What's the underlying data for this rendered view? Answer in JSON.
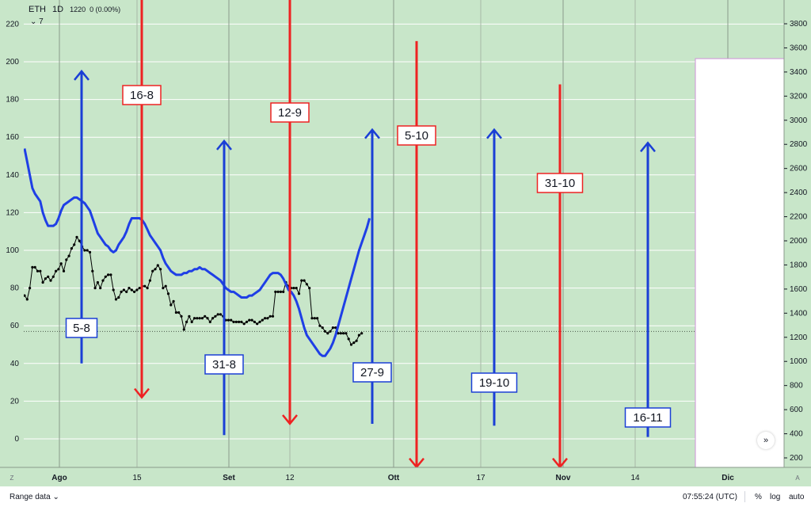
{
  "header": {
    "symbol": "ETH",
    "timeframe": "1D",
    "value": "1220",
    "change": "0 (0.00%)",
    "collapse_count": "7"
  },
  "footer": {
    "range_label": "Range data",
    "time": "07:55:24 (UTC)",
    "percent_label": "%",
    "log_label": "log",
    "auto_label": "auto",
    "corner_left": "Z",
    "corner_right": "A"
  },
  "colors": {
    "background": "#c8e6c9",
    "grid": "#ffffff",
    "sessions": "#9e9e9e",
    "black_series": "#000000",
    "blue_series": "#1f3fe6",
    "blue_arrows": "#1a3fd6",
    "red_arrows": "#ee2222"
  },
  "chart_data": {
    "type": "line",
    "x_axis_ticks": [
      "Ago",
      "15",
      "Set",
      "12",
      "Ott",
      "17",
      "Nov",
      "14",
      "Dic"
    ],
    "left_axis": {
      "ticks": [
        0,
        20,
        40,
        60,
        80,
        100,
        120,
        140,
        160,
        180,
        200,
        220
      ],
      "range": [
        -12,
        233
      ]
    },
    "right_axis": {
      "ticks": [
        200,
        400,
        600,
        800,
        1000,
        1200,
        1400,
        1600,
        1800,
        2000,
        2200,
        2400,
        2600,
        2800,
        3000,
        3200,
        3400,
        3600,
        3800
      ],
      "range": [
        150,
        3880
      ]
    },
    "reference_line_left_value": 57,
    "series": [
      {
        "color": "#000000",
        "axis": "left",
        "values": [
          76,
          74,
          80,
          91,
          91,
          89,
          89,
          83,
          85,
          86,
          84,
          86,
          89,
          90,
          93,
          89,
          95,
          97,
          101,
          103,
          107,
          105,
          102,
          100,
          100,
          99,
          89,
          80,
          83,
          80,
          84,
          86,
          87,
          87,
          79,
          74,
          75,
          78,
          79,
          78,
          80,
          79,
          78,
          79,
          80,
          81,
          81,
          80,
          84,
          89,
          90,
          92,
          90,
          80,
          81,
          77,
          71,
          73,
          67,
          67,
          65,
          58,
          62,
          65,
          62,
          64,
          64,
          64,
          64,
          65,
          64,
          62,
          64,
          65,
          66,
          66,
          65,
          63,
          63,
          63,
          62,
          62,
          62,
          62,
          61,
          62,
          63,
          63,
          62,
          61,
          62,
          63,
          64,
          64,
          65,
          65,
          78,
          78,
          78,
          78,
          83,
          81,
          80,
          80,
          80,
          77,
          84,
          84,
          82,
          80,
          64,
          64,
          64,
          60,
          59,
          57,
          56,
          57,
          59,
          59,
          56,
          56,
          56,
          56,
          53,
          50,
          51,
          52,
          55,
          56
        ]
      },
      {
        "color": "#1f3fe6",
        "axis": "left",
        "values": [
          154,
          147,
          140,
          133,
          130,
          128,
          126,
          120,
          116,
          113,
          113,
          113,
          114,
          117,
          121,
          124,
          125,
          126,
          127,
          128,
          128,
          127,
          126,
          125,
          123,
          121,
          117,
          113,
          109,
          107,
          105,
          103,
          102,
          100,
          99,
          100,
          103,
          105,
          107,
          110,
          114,
          117,
          117,
          117,
          117,
          116,
          114,
          111,
          108,
          106,
          104,
          102,
          100,
          96,
          93,
          91,
          89,
          88,
          87,
          87,
          87,
          88,
          88,
          89,
          89,
          90,
          90,
          91,
          90,
          90,
          89,
          88,
          87,
          86,
          85,
          84,
          82,
          80,
          79,
          78,
          78,
          77,
          76,
          75,
          75,
          75,
          76,
          76,
          77,
          78,
          79,
          81,
          83,
          85,
          87,
          88,
          88,
          88,
          87,
          85,
          82,
          79,
          78,
          76,
          73,
          69,
          64,
          59,
          55,
          53,
          51,
          49,
          47,
          45,
          44,
          44,
          46,
          48,
          51,
          55,
          60,
          65,
          70,
          75,
          80,
          85,
          90,
          95,
          100,
          104,
          108,
          112,
          117
        ]
      }
    ],
    "vertical_arrows": [
      {
        "label": "5-8",
        "color": "blue",
        "direction": "up",
        "from": 40,
        "to": 195
      },
      {
        "label": "16-8",
        "color": "red",
        "direction": "down",
        "from": 234,
        "to": 22
      },
      {
        "label": "31-8",
        "color": "blue",
        "direction": "up",
        "from": 2,
        "to": 158
      },
      {
        "label": "12-9",
        "color": "red",
        "direction": "down",
        "from": 234,
        "to": 8
      },
      {
        "label": "27-9",
        "color": "blue",
        "direction": "up",
        "from": 8,
        "to": 164
      },
      {
        "label": "5-10",
        "color": "red",
        "direction": "down",
        "from": 211,
        "to": -15
      },
      {
        "label": "19-10",
        "color": "blue",
        "direction": "up",
        "from": 7,
        "to": 164
      },
      {
        "label": "31-10",
        "color": "red",
        "direction": "down",
        "from": 188,
        "to": -15
      },
      {
        "label": "16-11",
        "color": "blue",
        "direction": "up",
        "from": 1,
        "to": 157
      }
    ]
  }
}
